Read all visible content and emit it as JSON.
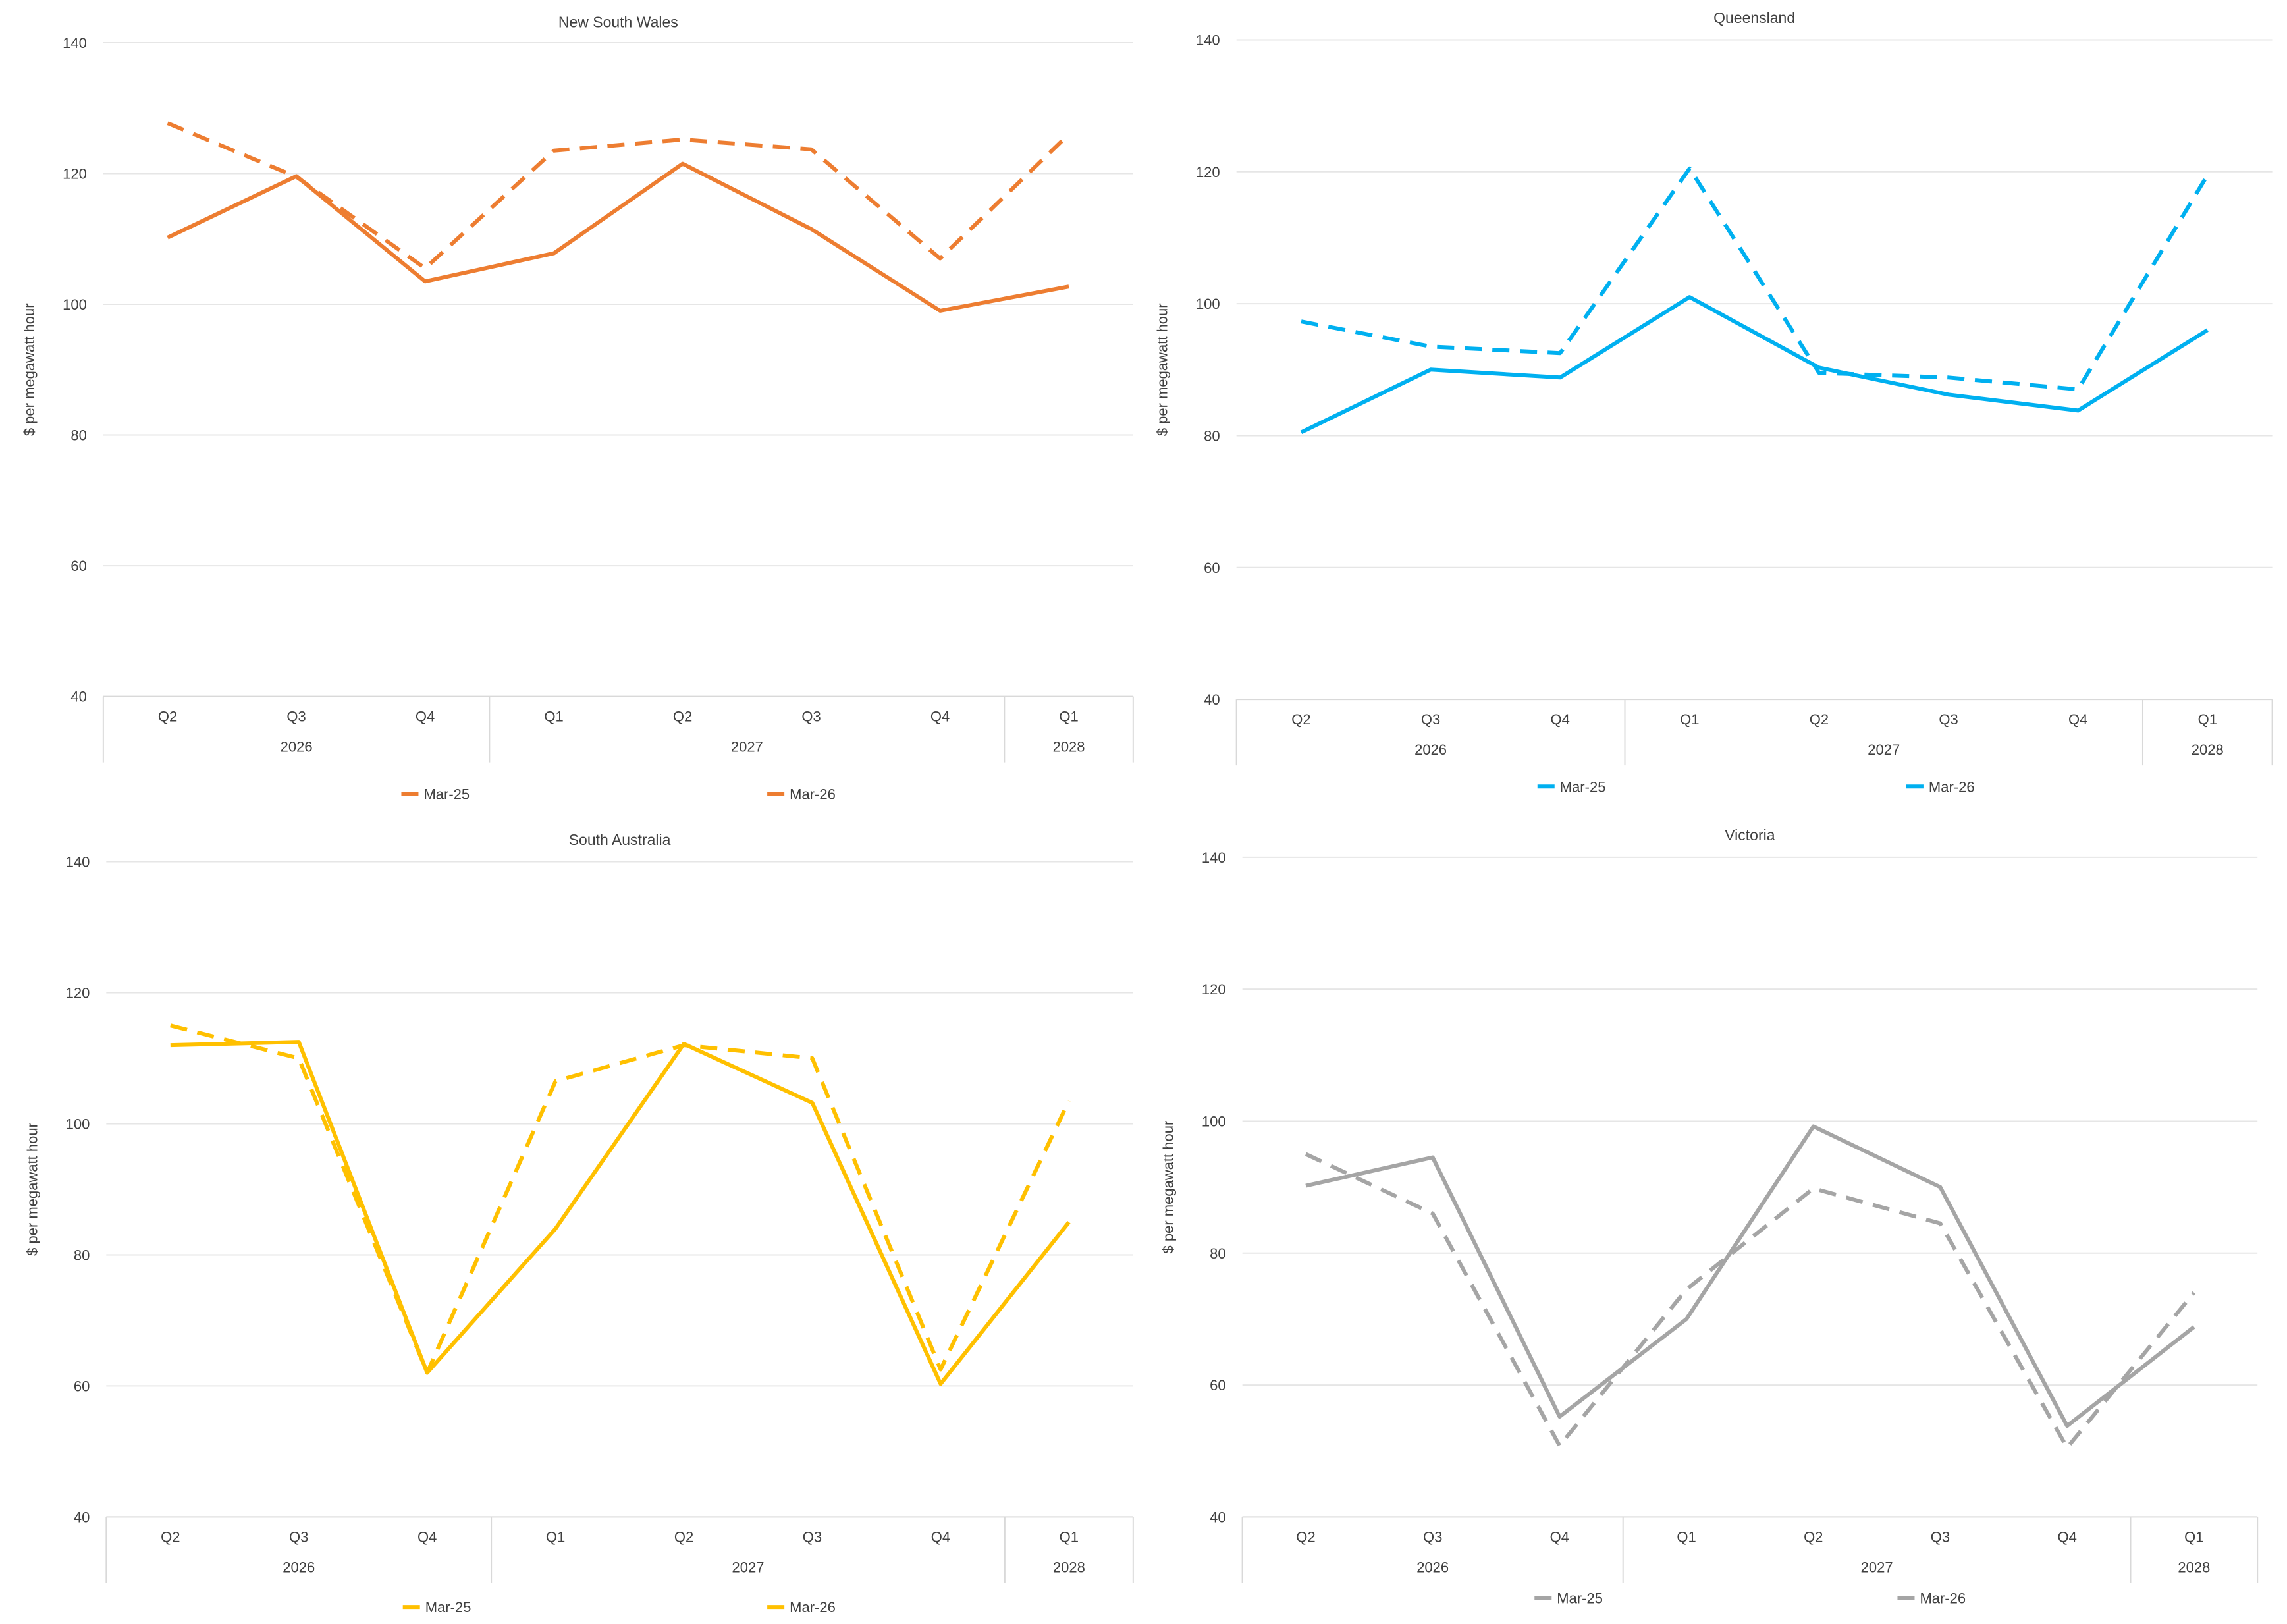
{
  "chart_data": [
    {
      "type": "line",
      "title": "New South Wales",
      "ylabel": "$ per megawatt hour",
      "xlabel": "",
      "ylim": [
        40,
        140
      ],
      "yticks": [
        40,
        60,
        80,
        100,
        120,
        140
      ],
      "categories": [
        "Q2",
        "Q3",
        "Q4",
        "Q1",
        "Q2",
        "Q3",
        "Q4",
        "Q1"
      ],
      "groups": [
        {
          "label": "2026",
          "count": 3
        },
        {
          "label": "2027",
          "count": 4
        },
        {
          "label": "2028",
          "count": 1
        }
      ],
      "color": "#ED7D31",
      "grid": true,
      "legend": "bottom",
      "series": [
        {
          "name": "Mar-25",
          "dash": true,
          "values": [
            127.7,
            119.5,
            105.5,
            123.5,
            125.2,
            123.7,
            107.0,
            126.0
          ]
        },
        {
          "name": "Mar-26",
          "dash": false,
          "values": [
            110.2,
            119.6,
            103.5,
            107.8,
            121.5,
            111.5,
            99.0,
            102.7
          ]
        }
      ]
    },
    {
      "type": "line",
      "title": "Queensland",
      "ylabel": "$ per megawatt hour",
      "xlabel": "",
      "ylim": [
        40,
        140
      ],
      "yticks": [
        40,
        60,
        80,
        100,
        120,
        140
      ],
      "categories": [
        "Q2",
        "Q3",
        "Q4",
        "Q1",
        "Q2",
        "Q3",
        "Q4",
        "Q1"
      ],
      "groups": [
        {
          "label": "2026",
          "count": 3
        },
        {
          "label": "2027",
          "count": 4
        },
        {
          "label": "2028",
          "count": 1
        }
      ],
      "color": "#00B0F0",
      "grid": true,
      "legend": "bottom",
      "series": [
        {
          "name": "Mar-25",
          "dash": true,
          "values": [
            97.3,
            93.5,
            92.5,
            120.5,
            89.5,
            88.8,
            87.0,
            119.5
          ]
        },
        {
          "name": "Mar-26",
          "dash": false,
          "values": [
            80.5,
            90.0,
            88.8,
            101.0,
            90.3,
            86.2,
            83.8,
            96.0
          ]
        }
      ]
    },
    {
      "type": "line",
      "title": "South Australia",
      "ylabel": "$ per megawatt hour",
      "xlabel": "",
      "ylim": [
        40,
        140
      ],
      "yticks": [
        40,
        60,
        80,
        100,
        120,
        140
      ],
      "categories": [
        "Q2",
        "Q3",
        "Q4",
        "Q1",
        "Q2",
        "Q3",
        "Q4",
        "Q1"
      ],
      "groups": [
        {
          "label": "2026",
          "count": 3
        },
        {
          "label": "2027",
          "count": 4
        },
        {
          "label": "2028",
          "count": 1
        }
      ],
      "color": "#FFC000",
      "grid": true,
      "legend": "bottom",
      "series": [
        {
          "name": "Mar-25",
          "dash": true,
          "values": [
            115.0,
            110.0,
            62.0,
            106.5,
            112.0,
            110.0,
            62.5,
            103.5
          ]
        },
        {
          "name": "Mar-26",
          "dash": false,
          "values": [
            112.0,
            112.5,
            62.0,
            84.0,
            112.2,
            103.2,
            60.3,
            85.0
          ]
        }
      ]
    },
    {
      "type": "line",
      "title": "Victoria",
      "ylabel": "$ per megawatt hour",
      "xlabel": "",
      "ylim": [
        40,
        140
      ],
      "yticks": [
        40,
        60,
        80,
        100,
        120,
        140
      ],
      "categories": [
        "Q2",
        "Q3",
        "Q4",
        "Q1",
        "Q2",
        "Q3",
        "Q4",
        "Q1"
      ],
      "groups": [
        {
          "label": "2026",
          "count": 3
        },
        {
          "label": "2027",
          "count": 4
        },
        {
          "label": "2028",
          "count": 1
        }
      ],
      "color": "#A5A5A5",
      "grid": true,
      "legend": "bottom",
      "series": [
        {
          "name": "Mar-25",
          "dash": true,
          "values": [
            95.0,
            86.0,
            50.8,
            74.5,
            89.8,
            84.5,
            50.5,
            74.0
          ]
        },
        {
          "name": "Mar-26",
          "dash": false,
          "values": [
            90.2,
            94.5,
            55.2,
            70.0,
            99.2,
            90.0,
            53.8,
            68.8
          ]
        }
      ]
    }
  ]
}
